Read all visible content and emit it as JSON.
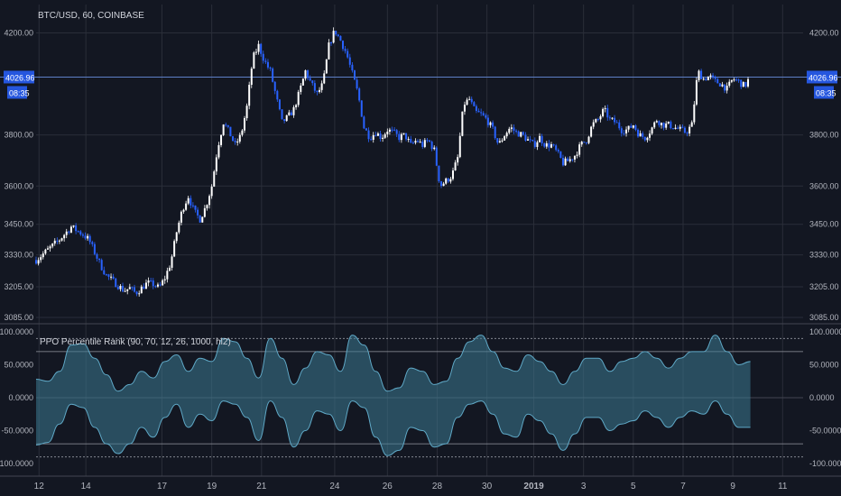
{
  "chart_data": [
    {
      "type": "candlestick",
      "title": "BTC/USD, 60, COINBASE",
      "ylim": [
        3085,
        4230
      ],
      "y_ticks": [
        "4200.00",
        "3800.00",
        "3600.00",
        "3450.00",
        "3330.00",
        "3205.00",
        "3085.00"
      ],
      "y_tick_values": [
        4200,
        3800,
        3600,
        3450,
        3330,
        3205,
        3085
      ],
      "last_price": "4026.96",
      "last_price_value": 4026.96,
      "countdown": "08:35",
      "close_path": [
        [
          0,
          3310
        ],
        [
          2,
          3350
        ],
        [
          4,
          3390
        ],
        [
          6,
          3440
        ],
        [
          8,
          3410
        ],
        [
          9,
          3390
        ],
        [
          10,
          3340
        ],
        [
          11,
          3290
        ],
        [
          12,
          3250
        ],
        [
          13,
          3230
        ],
        [
          14,
          3210
        ],
        [
          15,
          3190
        ],
        [
          16,
          3200
        ],
        [
          17,
          3180
        ],
        [
          18,
          3200
        ],
        [
          19,
          3220
        ],
        [
          20,
          3215
        ],
        [
          21,
          3200
        ],
        [
          22,
          3240
        ],
        [
          23,
          3300
        ],
        [
          24,
          3420
        ],
        [
          25,
          3510
        ],
        [
          26,
          3560
        ],
        [
          27,
          3500
        ],
        [
          28,
          3470
        ],
        [
          29,
          3520
        ],
        [
          30,
          3600
        ],
        [
          31,
          3750
        ],
        [
          32,
          3850
        ],
        [
          33,
          3810
        ],
        [
          34,
          3760
        ],
        [
          35,
          3800
        ],
        [
          36,
          3910
        ],
        [
          37,
          4100
        ],
        [
          38,
          4150
        ],
        [
          39,
          4090
        ],
        [
          40,
          4050
        ],
        [
          41,
          3950
        ],
        [
          42,
          3850
        ],
        [
          43,
          3870
        ],
        [
          44,
          3900
        ],
        [
          45,
          3970
        ],
        [
          46,
          4050
        ],
        [
          47,
          4000
        ],
        [
          48,
          3960
        ],
        [
          49,
          4000
        ],
        [
          50,
          4150
        ],
        [
          51,
          4210
        ],
        [
          52,
          4170
        ],
        [
          53,
          4120
        ],
        [
          54,
          4040
        ],
        [
          55,
          3960
        ],
        [
          56,
          3830
        ],
        [
          57,
          3790
        ],
        [
          58,
          3810
        ],
        [
          59,
          3790
        ],
        [
          60,
          3820
        ],
        [
          61,
          3810
        ],
        [
          62,
          3790
        ],
        [
          63,
          3800
        ],
        [
          64,
          3760
        ],
        [
          65,
          3780
        ],
        [
          66,
          3760
        ],
        [
          67,
          3780
        ],
        [
          68,
          3740
        ],
        [
          69,
          3600
        ],
        [
          70,
          3620
        ],
        [
          71,
          3640
        ],
        [
          72,
          3710
        ],
        [
          73,
          3920
        ],
        [
          74,
          3940
        ],
        [
          75,
          3890
        ],
        [
          76,
          3880
        ],
        [
          77,
          3860
        ],
        [
          78,
          3820
        ],
        [
          79,
          3760
        ],
        [
          80,
          3800
        ],
        [
          81,
          3830
        ],
        [
          82,
          3810
        ],
        [
          83,
          3800
        ],
        [
          84,
          3780
        ],
        [
          85,
          3760
        ],
        [
          86,
          3790
        ],
        [
          87,
          3760
        ],
        [
          88,
          3760
        ],
        [
          89,
          3730
        ],
        [
          90,
          3690
        ],
        [
          91,
          3700
        ],
        [
          92,
          3720
        ],
        [
          93,
          3760
        ],
        [
          94,
          3780
        ],
        [
          95,
          3840
        ],
        [
          96,
          3860
        ],
        [
          97,
          3900
        ],
        [
          98,
          3860
        ],
        [
          99,
          3850
        ],
        [
          100,
          3820
        ],
        [
          101,
          3820
        ],
        [
          102,
          3840
        ],
        [
          103,
          3800
        ],
        [
          104,
          3790
        ],
        [
          105,
          3820
        ],
        [
          106,
          3860
        ],
        [
          107,
          3840
        ],
        [
          108,
          3840
        ],
        [
          109,
          3830
        ],
        [
          110,
          3820
        ],
        [
          111,
          3810
        ],
        [
          112,
          3840
        ],
        [
          113,
          4050
        ],
        [
          114,
          4020
        ],
        [
          115,
          4030
        ],
        [
          116,
          4010
        ],
        [
          117,
          4000
        ],
        [
          118,
          3980
        ],
        [
          119,
          4020
        ],
        [
          120,
          4010
        ],
        [
          121,
          3990
        ],
        [
          122,
          4030
        ]
      ]
    },
    {
      "type": "area",
      "title": "PPO Percentile Rank (90, 70, 12, 26, 1000, hl2)",
      "ylim": [
        -100,
        100
      ],
      "y_ticks": [
        "100.0000",
        "50.0000",
        "0.0000",
        "-50.0000",
        "-100.0000"
      ],
      "y_tick_values": [
        100,
        50,
        0,
        -50,
        -100
      ],
      "levels": [
        90,
        70,
        -70,
        -90
      ],
      "x": [
        0,
        2,
        4,
        6,
        8,
        10,
        12,
        14,
        16,
        18,
        20,
        22,
        24,
        26,
        28,
        30,
        32,
        34,
        36,
        38,
        40,
        42,
        44,
        46,
        48,
        50,
        52,
        54,
        56,
        58,
        60,
        62,
        64,
        66,
        68,
        70,
        72,
        74,
        76,
        78,
        80,
        82,
        84,
        86,
        88,
        90,
        92,
        94,
        96,
        98,
        100,
        102,
        104,
        106,
        108,
        110,
        112,
        114,
        116,
        118,
        120,
        122
      ],
      "series": [
        {
          "name": "upper",
          "values": [
            28,
            25,
            40,
            80,
            82,
            60,
            35,
            10,
            20,
            40,
            30,
            55,
            65,
            40,
            60,
            55,
            90,
            85,
            60,
            30,
            90,
            60,
            20,
            45,
            70,
            65,
            40,
            95,
            80,
            40,
            10,
            15,
            45,
            40,
            20,
            25,
            60,
            85,
            95,
            70,
            45,
            40,
            65,
            55,
            40,
            20,
            40,
            60,
            60,
            40,
            55,
            60,
            70,
            60,
            45,
            60,
            70,
            70,
            95,
            70,
            50,
            55
          ]
        },
        {
          "name": "lower",
          "values": [
            -72,
            -68,
            -40,
            -10,
            -15,
            -45,
            -70,
            -85,
            -70,
            -45,
            -60,
            -30,
            -10,
            -45,
            -25,
            -35,
            -5,
            -10,
            -30,
            -65,
            -5,
            -30,
            -75,
            -50,
            -20,
            -25,
            -50,
            -5,
            -15,
            -60,
            -88,
            -80,
            -45,
            -50,
            -75,
            -70,
            -30,
            -10,
            -5,
            -25,
            -55,
            -60,
            -25,
            -35,
            -55,
            -80,
            -55,
            -30,
            -30,
            -50,
            -40,
            -35,
            -20,
            -30,
            -45,
            -30,
            -20,
            -25,
            -5,
            -25,
            -45,
            -45
          ]
        }
      ]
    }
  ],
  "x_axis": {
    "labels": [
      "12",
      "14",
      "17",
      "19",
      "21",
      "24",
      "26",
      "28",
      "30",
      "2019",
      "3",
      "5",
      "7",
      "9",
      "11"
    ],
    "x_values": [
      0.5,
      8.5,
      21.5,
      30,
      38.5,
      51,
      60,
      68.5,
      77,
      85,
      93.5,
      102,
      110.5,
      119,
      127.5
    ]
  }
}
